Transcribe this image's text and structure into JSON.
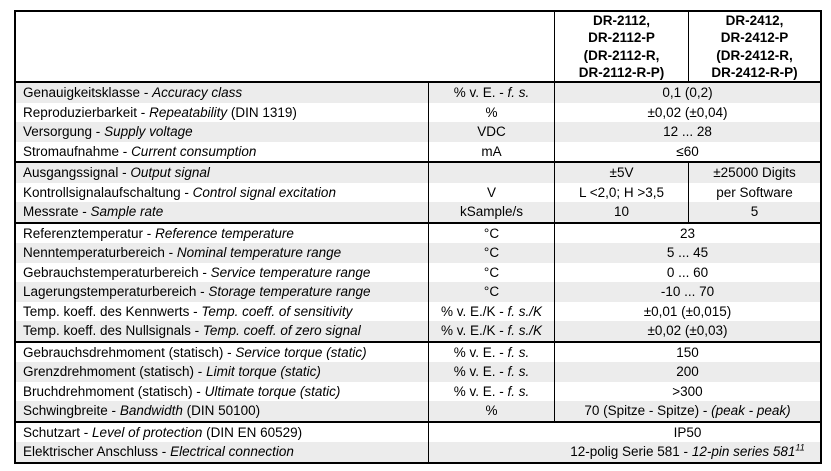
{
  "colors": {
    "stripe": "#ececec",
    "border": "#000000",
    "background": "#ffffff"
  },
  "header": {
    "col1": "DR-2112,\nDR-2112-P\n(DR-2112-R,\nDR-2112-R-P)",
    "col2": "DR-2412,\nDR-2412-P\n(DR-2412-R,\nDR-2412-R-P)"
  },
  "rows": [
    {
      "de": "Genauigkeitsklasse -",
      "en": "Accuracy class",
      "suf": "",
      "unit_a": "% v. E. -",
      "unit_b": "f. s.",
      "val_a": "0,1 (0,2)",
      "val_b": "",
      "val_sup": ""
    },
    {
      "de": "Reproduzierbarkeit -",
      "en": "Repeatability",
      "suf": "(DIN 1319)",
      "unit_a": "%",
      "unit_b": "",
      "val_a": "±0,02 (±0,04)",
      "val_b": "",
      "val_sup": ""
    },
    {
      "de": "Versorgung -",
      "en": "Supply voltage",
      "suf": "",
      "unit_a": "VDC",
      "unit_b": "",
      "val_a": "12 ... 28",
      "val_b": "",
      "val_sup": ""
    },
    {
      "de": "Stromaufnahme -",
      "en": "Current consumption",
      "suf": "",
      "unit_a": "mA",
      "unit_b": "",
      "val_a": "≤60",
      "val_b": "",
      "val_sup": ""
    },
    {
      "de": "Ausgangssignal -",
      "en": "Output signal",
      "suf": "",
      "unit_a": "",
      "unit_b": "",
      "v1": "±5V",
      "v2": "±25000 Digits"
    },
    {
      "de": "Kontrollsignalaufschaltung -",
      "en": "Control signal excitation",
      "suf": "",
      "unit_a": "V",
      "unit_b": "",
      "v1": "L <2,0; H >3,5",
      "v2": "per Software"
    },
    {
      "de": "Messrate -",
      "en": "Sample rate",
      "suf": "",
      "unit_a": "kSample/s",
      "unit_b": "",
      "v1": "10",
      "v2": "5"
    },
    {
      "de": "Referenztemperatur -",
      "en": "Reference temperature",
      "suf": "",
      "unit_a": "°C",
      "unit_b": "",
      "val_a": "23",
      "val_b": "",
      "val_sup": ""
    },
    {
      "de": "Nenntemperaturbereich -",
      "en": "Nominal temperature range",
      "suf": "",
      "unit_a": "°C",
      "unit_b": "",
      "val_a": "5 ... 45",
      "val_b": "",
      "val_sup": ""
    },
    {
      "de": "Gebrauchstemperaturbereich -",
      "en": "Service temperature range",
      "suf": "",
      "unit_a": "°C",
      "unit_b": "",
      "val_a": "0 ... 60",
      "val_b": "",
      "val_sup": ""
    },
    {
      "de": "Lagerungstemperaturbereich -",
      "en": "Storage temperature range",
      "suf": "",
      "unit_a": "°C",
      "unit_b": "",
      "val_a": "-10 ... 70",
      "val_b": "",
      "val_sup": ""
    },
    {
      "de": "Temp. koeff. des Kennwerts -",
      "en": "Temp. coeff. of sensitivity",
      "suf": "",
      "unit_a": "% v. E./K -",
      "unit_b": "f. s./K",
      "val_a": "±0,01 (±0,015)",
      "val_b": "",
      "val_sup": ""
    },
    {
      "de": "Temp. koeff. des Nullsignals -",
      "en": "Temp. coeff. of zero signal",
      "suf": "",
      "unit_a": "% v. E./K -",
      "unit_b": "f. s./K",
      "val_a": "±0,02 (±0,03)",
      "val_b": "",
      "val_sup": ""
    },
    {
      "de": "Gebrauchsdrehmoment (statisch) -",
      "en": "Service torque (static)",
      "suf": "",
      "unit_a": "% v. E. -",
      "unit_b": "f. s.",
      "val_a": "150",
      "val_b": "",
      "val_sup": ""
    },
    {
      "de": "Grenzdrehmoment (statisch) -",
      "en": "Limit torque (static)",
      "suf": "",
      "unit_a": "% v. E. -",
      "unit_b": "f. s.",
      "val_a": "200",
      "val_b": "",
      "val_sup": ""
    },
    {
      "de": "Bruchdrehmoment (statisch) -",
      "en": "Ultimate torque (static)",
      "suf": "",
      "unit_a": "% v. E. -",
      "unit_b": "f. s.",
      "val_a": ">300",
      "val_b": "",
      "val_sup": ""
    },
    {
      "de": "Schwingbreite -",
      "en": "Bandwidth",
      "suf": "(DIN 50100)",
      "unit_a": "%",
      "unit_b": "",
      "val_a": "70 (Spitze - Spitze) -",
      "val_b": "(peak - peak)",
      "val_sup": ""
    },
    {
      "de": "Schutzart -",
      "en": "Level of protection",
      "suf": "(DIN EN 60529)",
      "val_a": "IP50",
      "val_b": "",
      "val_sup": ""
    },
    {
      "de": "Elektrischer Anschluss -",
      "en": "Electrical connection",
      "suf": "",
      "val_a": "12-polig Serie 581 -",
      "val_b": "12-pin series 581",
      "val_sup": "11"
    }
  ]
}
